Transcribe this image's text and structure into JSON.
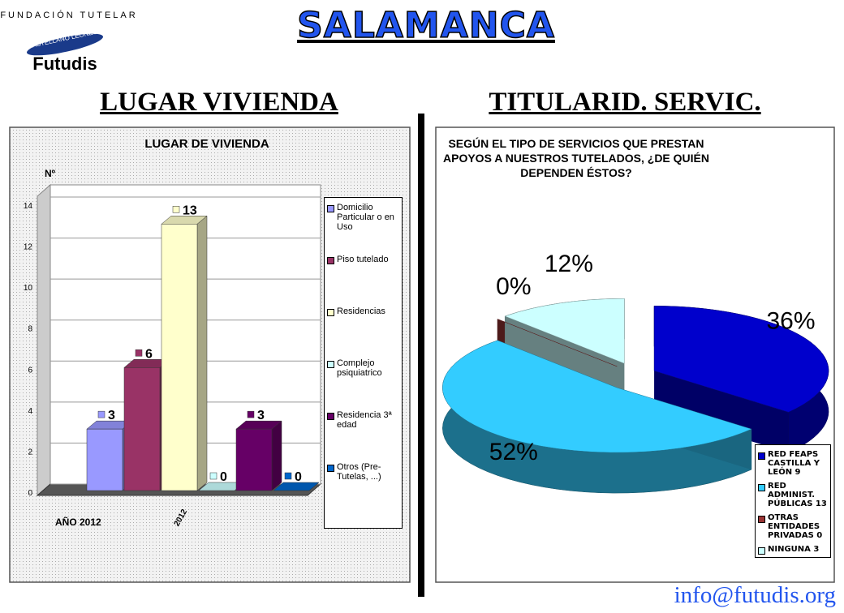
{
  "header": {
    "title": "SALAMANCA",
    "logo": {
      "line1": "FUNDACIÓN TUTELAR",
      "line2": "CASTELLANO LEONESA",
      "brand": "Futudis"
    },
    "left_heading": "LUGAR VIVIENDA",
    "right_heading": "TITULARID. SERVIC."
  },
  "footer": {
    "email": "info@futudis.org"
  },
  "chart_data": [
    {
      "type": "bar",
      "title": "LUGAR DE VIVIENDA",
      "y_label": "Nº",
      "x_label": "AÑO 2012",
      "categories": [
        "2012"
      ],
      "series": [
        {
          "name": "Domicilio Particular o en Uso",
          "color": "#9999ff",
          "values": [
            3
          ]
        },
        {
          "name": "Piso tutelado",
          "color": "#993366",
          "values": [
            6
          ]
        },
        {
          "name": "Residencias",
          "color": "#ffffcc",
          "values": [
            13
          ]
        },
        {
          "name": "Complejo psiquiatrico",
          "color": "#ccffff",
          "values": [
            0
          ]
        },
        {
          "name": "Residencia 3ª edad",
          "color": "#660066",
          "values": [
            3
          ]
        },
        {
          "name": "Otros (Pre-Tutelas, ...)",
          "color": "#0066cc",
          "values": [
            0
          ]
        }
      ],
      "ylim": [
        0,
        14
      ],
      "yticks": [
        0,
        2,
        4,
        6,
        8,
        10,
        12,
        14
      ],
      "grid": true,
      "legend": "right"
    },
    {
      "type": "pie",
      "title": "SEGÚN EL TIPO DE SERVICIOS QUE PRESTAN APOYOS A NUESTROS TUTELADOS, ¿DE QUIÉN DEPENDEN ÉSTOS?",
      "labels": [
        "RED FEAPS CASTILLA Y LEÓN 9",
        "RED ADMINIST. PÚBLICAS 13",
        "OTRAS ENTIDADES PRIVADAS 0",
        "NINGUNA 3"
      ],
      "values": [
        36,
        52,
        0,
        12
      ],
      "value_labels": [
        "36%",
        "52%",
        "0%",
        "12%"
      ],
      "colors": [
        "#0000cc",
        "#33ccff",
        "#993333",
        "#ccffff"
      ],
      "legend": "bottom-right"
    }
  ]
}
